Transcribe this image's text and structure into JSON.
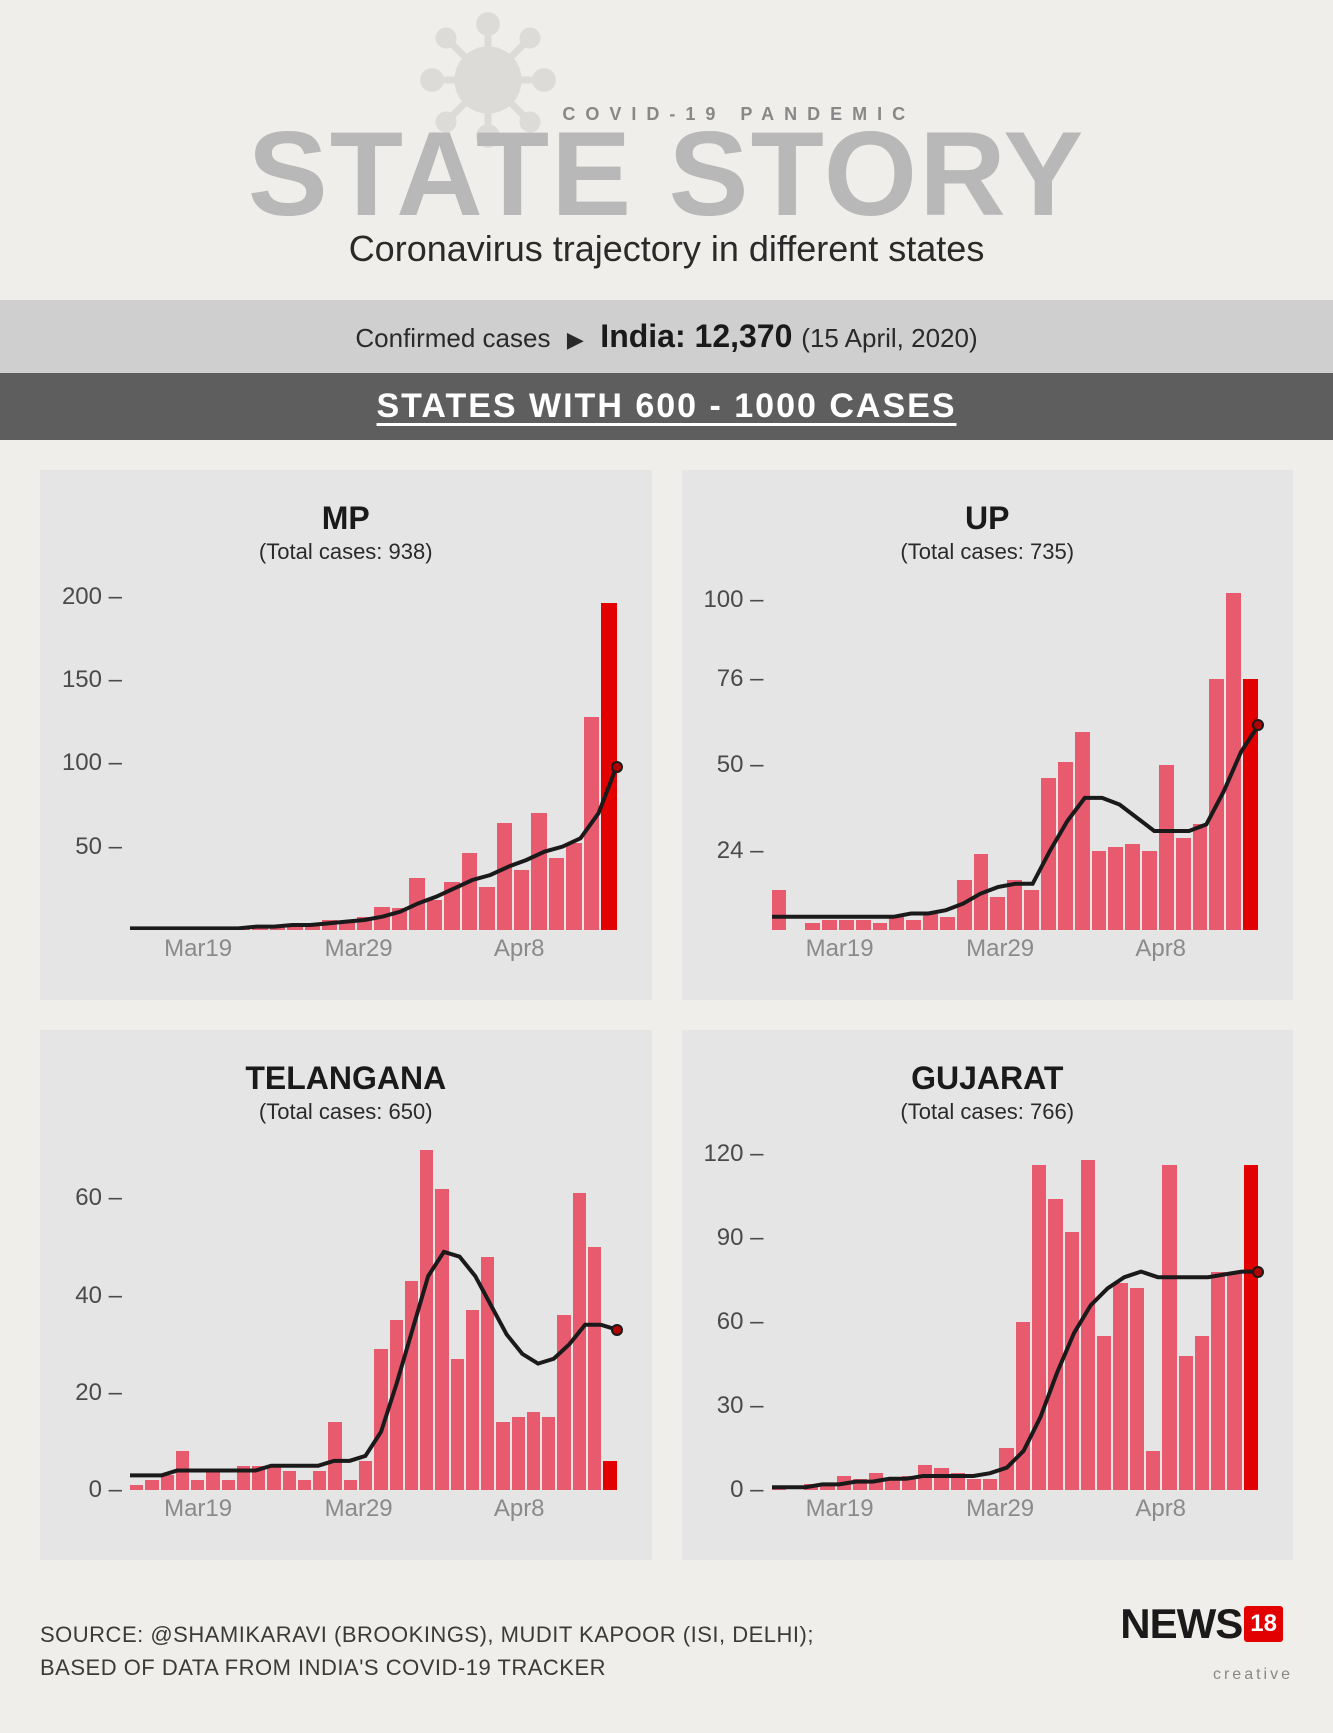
{
  "header": {
    "pandemic_label": "COVID-19 PANDEMIC",
    "title": "STATE STORY",
    "subtitle": "Coronavirus trajectory in different states"
  },
  "confirmed": {
    "label": "Confirmed cases",
    "country_prefix": "India:",
    "count": "12,370",
    "date": "(15 April, 2020)"
  },
  "category": "STATES WITH 600 - 1000 CASES",
  "colors": {
    "bar": "#e85a6e",
    "bar_last": "#e20000",
    "line": "#1a1a1a",
    "panel_bg": "#e5e5e5",
    "page_bg": "#f0eeea",
    "tick": "#4a4a4a",
    "xtick": "#8a8a8a"
  },
  "x_ticks": [
    "Mar19",
    "Mar29",
    "Apr8"
  ],
  "x_tick_positions_pct": [
    14,
    47,
    80
  ],
  "charts": [
    {
      "name": "MP",
      "total": "(Total cases: 938)",
      "y_ticks": [
        50,
        100,
        150,
        200
      ],
      "y_max": 210,
      "bars": [
        1,
        0,
        0,
        0,
        0,
        0,
        1,
        2,
        3,
        3,
        4,
        6,
        5,
        8,
        14,
        13,
        31,
        18,
        29,
        46,
        26,
        64,
        36,
        70,
        43,
        52,
        128,
        196
      ],
      "line": [
        1,
        1,
        1,
        1,
        1,
        1,
        1,
        2,
        2,
        3,
        3,
        4,
        5,
        6,
        8,
        11,
        16,
        20,
        25,
        30,
        33,
        38,
        42,
        47,
        50,
        55,
        70,
        98
      ],
      "line_end_dot": true
    },
    {
      "name": "UP",
      "total": "(Total cases: 735)",
      "y_ticks": [
        24,
        50,
        76,
        100
      ],
      "y_max": 106,
      "bars": [
        12,
        0,
        2,
        3,
        3,
        3,
        2,
        4,
        3,
        5,
        4,
        15,
        23,
        10,
        15,
        12,
        46,
        51,
        60,
        24,
        25,
        26,
        24,
        50,
        28,
        32,
        76,
        102,
        76
      ],
      "line": [
        4,
        4,
        4,
        4,
        4,
        4,
        4,
        4,
        5,
        5,
        6,
        8,
        11,
        13,
        14,
        14,
        24,
        33,
        40,
        40,
        38,
        34,
        30,
        30,
        30,
        32,
        42,
        54,
        62
      ],
      "line_end_dot": true
    },
    {
      "name": "TELANGANA",
      "total": "(Total cases: 650)",
      "y_ticks": [
        0,
        20,
        40,
        60
      ],
      "y_max": 72,
      "bars": [
        1,
        2,
        3,
        8,
        2,
        4,
        2,
        5,
        5,
        5,
        4,
        2,
        4,
        14,
        2,
        6,
        29,
        35,
        43,
        70,
        62,
        27,
        37,
        48,
        14,
        15,
        16,
        15,
        36,
        61,
        50,
        6
      ],
      "line": [
        3,
        3,
        3,
        4,
        4,
        4,
        4,
        4,
        4,
        5,
        5,
        5,
        5,
        6,
        6,
        7,
        12,
        22,
        33,
        44,
        49,
        48,
        44,
        38,
        32,
        28,
        26,
        27,
        30,
        34,
        34,
        33
      ],
      "line_end_dot": true
    },
    {
      "name": "GUJARAT",
      "total": "(Total cases: 766)",
      "y_ticks": [
        0,
        30,
        60,
        90,
        120
      ],
      "y_max": 125,
      "bars": [
        1,
        0,
        2,
        2,
        5,
        4,
        6,
        4,
        5,
        9,
        8,
        6,
        4,
        4,
        15,
        60,
        116,
        104,
        92,
        118,
        55,
        74,
        72,
        14,
        116,
        48,
        55,
        78,
        78,
        116
      ],
      "line": [
        1,
        1,
        1,
        2,
        2,
        3,
        3,
        4,
        4,
        5,
        5,
        5,
        5,
        6,
        8,
        14,
        26,
        42,
        56,
        66,
        72,
        76,
        78,
        76,
        76,
        76,
        76,
        77,
        78,
        78
      ],
      "line_end_dot": true
    }
  ],
  "footer": {
    "source_line1": "SOURCE: @SHAMIKARAVI (BROOKINGS), MUDIT KAPOOR (ISI, DELHI);",
    "source_line2": "BASED OF DATA FROM INDIA'S COVID-19 TRACKER",
    "logo_text": "NEWS",
    "logo_badge": "18",
    "logo_sub": "creative"
  }
}
